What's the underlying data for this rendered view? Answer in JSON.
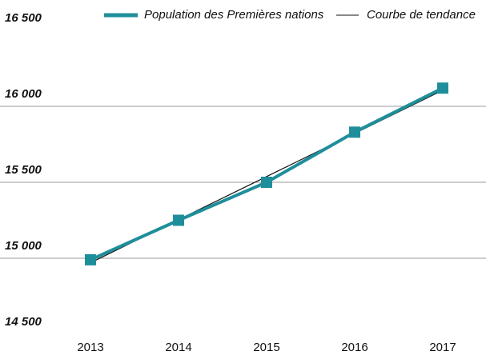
{
  "chart_data": {
    "type": "line",
    "categories": [
      "2013",
      "2014",
      "2015",
      "2016",
      "2017"
    ],
    "series": [
      {
        "name": "Population des Premières nations",
        "color": "#1f8e9b",
        "values": [
          14990,
          15250,
          15500,
          15830,
          16120
        ]
      },
      {
        "name": "Courbe de tendance",
        "color": "#111111",
        "values": [
          14970,
          15254,
          15538,
          15822,
          16106
        ]
      }
    ],
    "ylim": [
      14500,
      16500
    ],
    "yticks": [
      {
        "value": 14500,
        "label": "14 500"
      },
      {
        "value": 15000,
        "label": "15 000"
      },
      {
        "value": 15500,
        "label": "15 500"
      },
      {
        "value": 16000,
        "label": "16 000"
      },
      {
        "value": 16500,
        "label": "16 500"
      }
    ],
    "grid": true
  }
}
